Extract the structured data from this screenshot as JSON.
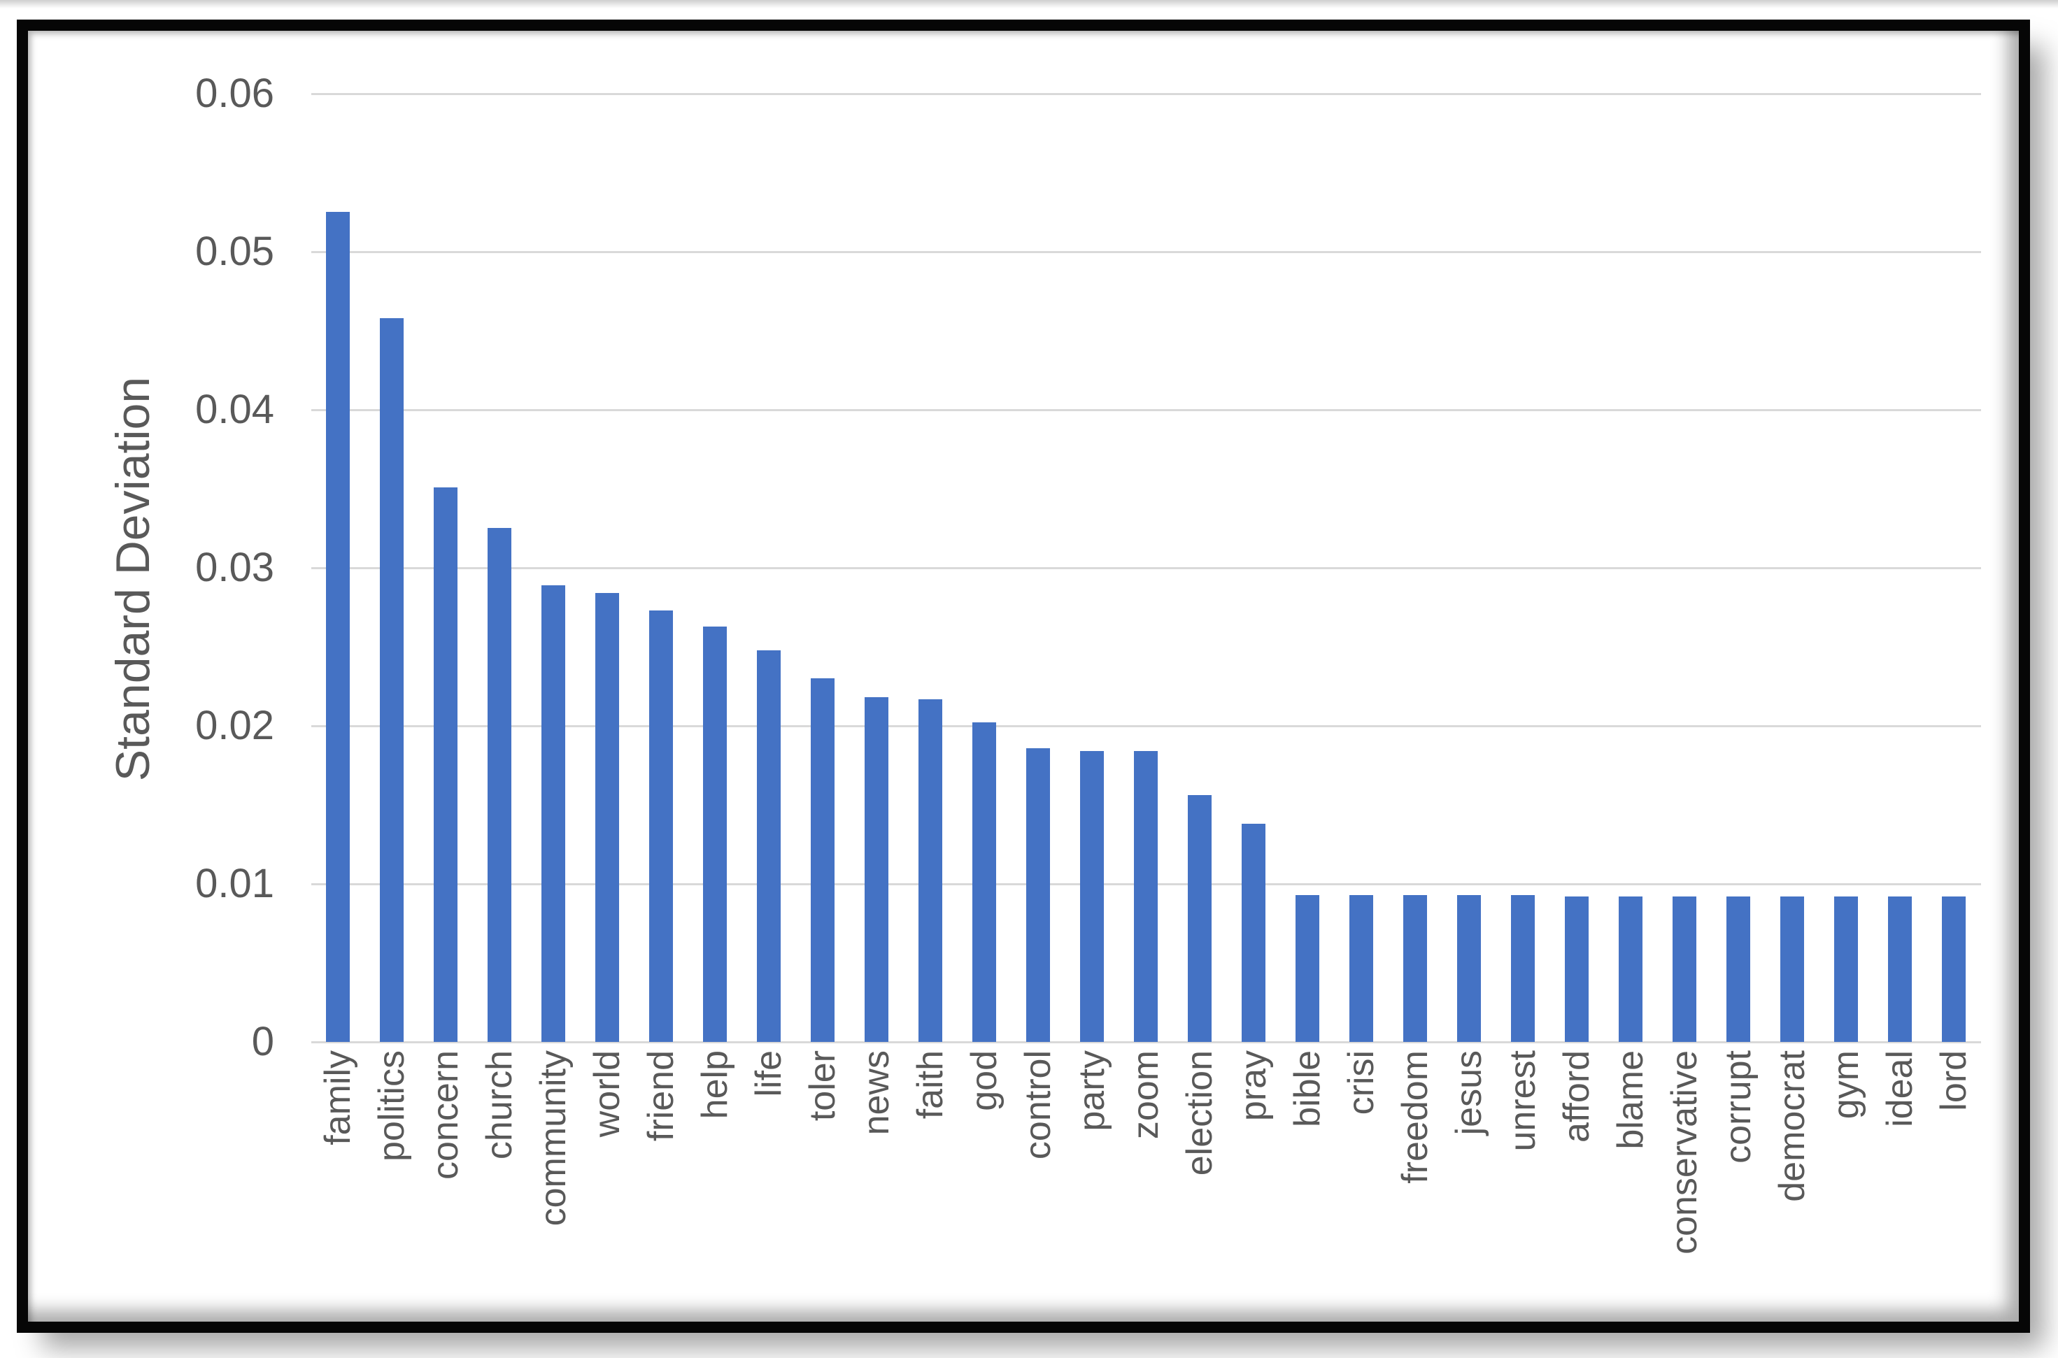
{
  "chart_data": {
    "type": "bar",
    "title": "",
    "xlabel": "",
    "ylabel": "Standard Deviation",
    "categories": [
      "family",
      "politics",
      "concern",
      "church",
      "community",
      "world",
      "friend",
      "help",
      "life",
      "toler",
      "news",
      "faith",
      "god",
      "control",
      "party",
      "zoom",
      "election",
      "pray",
      "bible",
      "crisi",
      "freedom",
      "jesus",
      "unrest",
      "afford",
      "blame",
      "conservative",
      "corrupt",
      "democrat",
      "gym",
      "ideal",
      "lord"
    ],
    "values": [
      0.0525,
      0.0458,
      0.0351,
      0.0325,
      0.0289,
      0.0284,
      0.0273,
      0.0263,
      0.0248,
      0.023,
      0.0218,
      0.0217,
      0.0202,
      0.0186,
      0.0184,
      0.0184,
      0.0156,
      0.0138,
      0.0093,
      0.0093,
      0.0093,
      0.0093,
      0.0093,
      0.0092,
      0.0092,
      0.0092,
      0.0092,
      0.0092,
      0.0092,
      0.0092,
      0.0092
    ],
    "ylim": [
      0,
      0.06
    ],
    "yticks": [
      0,
      0.01,
      0.02,
      0.03,
      0.04,
      0.05,
      0.06
    ],
    "ytick_labels": [
      "0",
      "0.01",
      "0.02",
      "0.03",
      "0.04",
      "0.05",
      "0.06"
    ],
    "grid": true,
    "legend_position": "none",
    "bar_color": "#4472C4",
    "gridline_color": "#D9D9D9",
    "text_color": "#595959",
    "frame_color": "#060606",
    "background_color": "#FFFFFF"
  }
}
